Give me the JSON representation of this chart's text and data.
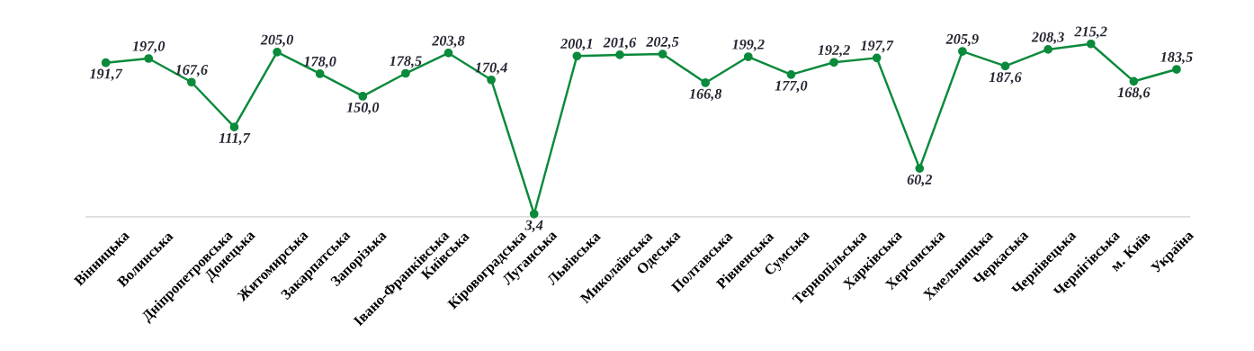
{
  "chart_data": {
    "type": "line",
    "color": "#0b8a3c",
    "marker": "circle",
    "line_style": "solid",
    "categories": [
      "Вінницька",
      "Волинська",
      "Дніпропетровська",
      "Донецька",
      "Житомирська",
      "Закарпатська",
      "Запорізька",
      "Івано-Франківська",
      "Київська",
      "Кіровоградська",
      "Луганська",
      "Львівська",
      "Миколаївська",
      "Одеська",
      "Полтавська",
      "Рівненська",
      "Сумська",
      "Тернопільська",
      "Харківська",
      "Херсонська",
      "Хмельницька",
      "Черкаська",
      "Чернівецька",
      "Чернігівська",
      "м. Київ",
      "Україна"
    ],
    "values": [
      191.7,
      197.0,
      167.6,
      111.7,
      205.0,
      178.0,
      150.0,
      178.5,
      203.8,
      170.4,
      3.4,
      200.1,
      201.6,
      202.5,
      166.8,
      199.2,
      177.0,
      192.2,
      197.7,
      60.2,
      205.9,
      187.6,
      208.3,
      215.2,
      168.6,
      183.5
    ],
    "value_labels": [
      "191,7",
      "197,0",
      "167,6",
      "111,7",
      "205,0",
      "178,0",
      "150,0",
      "178,5",
      "203,8",
      "170,4",
      "3,4",
      "200,1",
      "201,6",
      "202,5",
      "166,8",
      "199,2",
      "177,0",
      "192,2",
      "197,7",
      "60,2",
      "205,9",
      "187,6",
      "208,3",
      "215,2",
      "168,6",
      "183,5"
    ]
  }
}
